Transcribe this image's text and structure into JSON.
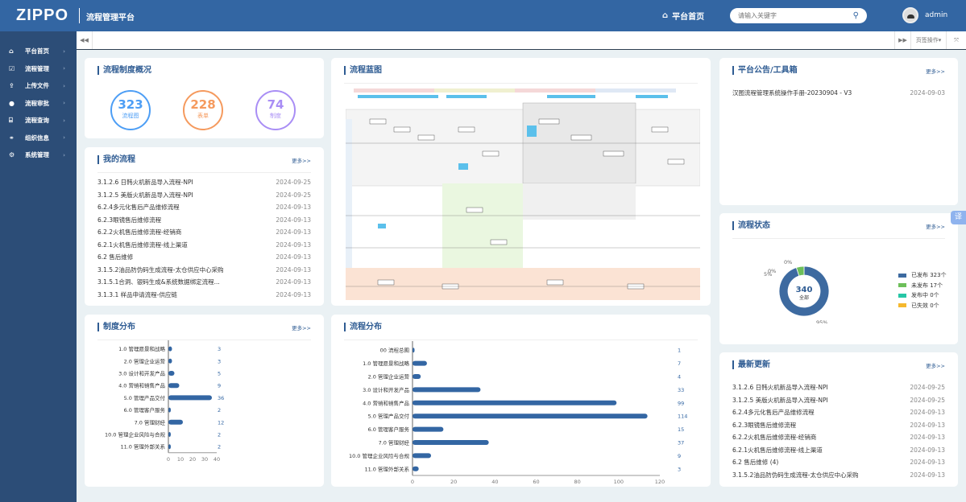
{
  "header": {
    "logo": "ZIPPO",
    "app_title": "流程管理平台",
    "home_label": "平台首页",
    "search_placeholder": "请输入关键字",
    "user": "admin"
  },
  "sidebar": {
    "items": [
      {
        "label": "平台首页",
        "icon": "home-icon"
      },
      {
        "label": "流程管理",
        "icon": "checkbox-icon"
      },
      {
        "label": "上传文件",
        "icon": "upload-icon"
      },
      {
        "label": "流程审批",
        "icon": "user-icon"
      },
      {
        "label": "流程查询",
        "icon": "bank-icon"
      },
      {
        "label": "组织信息",
        "icon": "org-icon"
      },
      {
        "label": "系统管理",
        "icon": "gears-icon"
      }
    ]
  },
  "tabbar": {
    "page_ops": "页签操作"
  },
  "overview": {
    "title": "流程制度概况",
    "stats": [
      {
        "value": "323",
        "label": "流程图",
        "color": "#4d9ef5"
      },
      {
        "value": "228",
        "label": "表单",
        "color": "#f59a5e"
      },
      {
        "value": "74",
        "label": "制度",
        "color": "#a98ef5"
      }
    ]
  },
  "more": "更多>>",
  "my_flows": {
    "title": "我的流程",
    "items": [
      {
        "name": "3.1.2.6 日韩火机新品导入流程-NPI",
        "date": "2024-09-25"
      },
      {
        "name": "3.1.2.5 美版火机新品导入流程-NPI",
        "date": "2024-09-25"
      },
      {
        "name": "6.2.4多元化售后产品维修流程",
        "date": "2024-09-13"
      },
      {
        "name": "6.2.3眼镜售后维修流程",
        "date": "2024-09-13"
      },
      {
        "name": "6.2.2火机售后维修流程-经销商",
        "date": "2024-09-13"
      },
      {
        "name": "6.2.1火机售后维修流程-线上渠道",
        "date": "2024-09-13"
      },
      {
        "name": "6.2 售后维修",
        "date": "2024-09-13"
      },
      {
        "name": "3.1.5.2油品防伪码生成流程-太仓供应中心采购",
        "date": "2024-09-13"
      },
      {
        "name": "3.1.5.1合洞、银码生成&系统数据绑定流程...",
        "date": "2024-09-13"
      },
      {
        "name": "3.1.3.1 样品申请流程-供应链",
        "date": "2024-09-13"
      }
    ]
  },
  "blueprint": {
    "title": "流程蓝图"
  },
  "announce": {
    "title": "平台公告/工具箱",
    "items": [
      {
        "name": "汉图流程管理系统操作手册-20230904 - V3",
        "date": "2024-09-03"
      }
    ]
  },
  "status": {
    "title": "流程状态",
    "total": "340",
    "total_label": "全部",
    "slices": [
      {
        "label": "已发布 323个",
        "value": 323,
        "pct": "95%",
        "color": "#3d6aa0"
      },
      {
        "label": "未发布 17个",
        "value": 17,
        "pct": "5%",
        "color": "#6dbf5a"
      },
      {
        "label": "发布中 0个",
        "value": 0,
        "pct": "0%",
        "color": "#26c6a6"
      },
      {
        "label": "已失效 0个",
        "value": 0,
        "pct": "0%",
        "color": "#f5b82e"
      }
    ]
  },
  "latest": {
    "title": "最新更新",
    "items": [
      {
        "name": "3.1.2.6 日韩火机新品导入流程-NPI",
        "date": "2024-09-25"
      },
      {
        "name": "3.1.2.5 美版火机新品导入流程-NPI",
        "date": "2024-09-25"
      },
      {
        "name": "6.2.4多元化售后产品维修流程",
        "date": "2024-09-13"
      },
      {
        "name": "6.2.3眼镜售后维修流程",
        "date": "2024-09-13"
      },
      {
        "name": "6.2.2火机售后维修流程-经销商",
        "date": "2024-09-13"
      },
      {
        "name": "6.2.1火机售后维修流程-线上渠道",
        "date": "2024-09-13"
      },
      {
        "name": "6.2 售后维修 (4)",
        "date": "2024-09-13"
      },
      {
        "name": "3.1.5.2油品防伪码生成流程-太仓供应中心采购",
        "date": "2024-09-13"
      }
    ]
  },
  "chart_data": [
    {
      "type": "bar",
      "orientation": "horizontal",
      "title": "制度分布",
      "categories": [
        "1.0 管理愿景和战略",
        "2.0 管理企业运营",
        "3.0 设计和开发产品",
        "4.0 营销和销售产品",
        "5.0 管理产品交付",
        "6.0 管理客户服务",
        "7.0 管理财经",
        "10.0 管理企业风险与合规",
        "11.0 管理外部关系"
      ],
      "values": [
        3,
        3,
        5,
        9,
        36,
        2,
        12,
        2,
        2
      ],
      "xlim": [
        0,
        40
      ],
      "xticks": [
        0,
        10,
        20,
        30,
        40
      ],
      "color": "#3366a3"
    },
    {
      "type": "bar",
      "orientation": "horizontal",
      "title": "流程分布",
      "categories": [
        "00 流程总图",
        "1.0 管理愿景和战略",
        "2.0 管理企业运营",
        "3.0 设计和开发产品",
        "4.0 营销和销售产品",
        "5.0 管理产品交付",
        "6.0 管理客户服务",
        "7.0 管理财经",
        "10.0 管理企业风险与合规",
        "11.0 管理外部关系"
      ],
      "values": [
        1,
        7,
        4,
        33,
        99,
        114,
        15,
        37,
        9,
        3
      ],
      "xlim": [
        0,
        120
      ],
      "xticks": [
        0,
        20,
        40,
        60,
        80,
        100,
        120
      ],
      "color": "#3366a3"
    }
  ],
  "translate_label": "译"
}
